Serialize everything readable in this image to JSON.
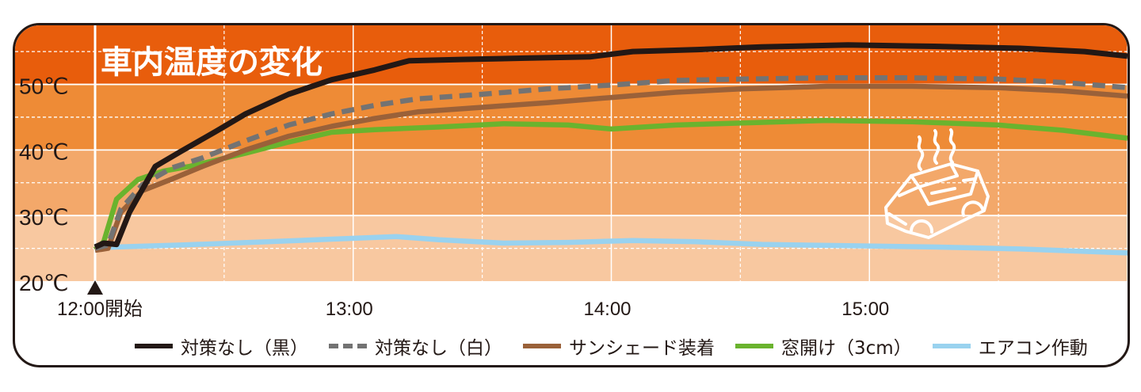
{
  "chart_data": {
    "type": "line",
    "title": "車内温度の変化",
    "xlabel": "",
    "ylabel": "",
    "x_ticks": [
      {
        "label": "12:00開始",
        "x": 0
      },
      {
        "label": "13:00",
        "x": 60
      },
      {
        "label": "14:00",
        "x": 120
      },
      {
        "label": "15:00",
        "x": 180
      }
    ],
    "y_ticks": [
      {
        "label": "20℃",
        "y": 20
      },
      {
        "label": "30℃",
        "y": 30
      },
      {
        "label": "40℃",
        "y": 40
      },
      {
        "label": "50℃",
        "y": 50
      }
    ],
    "xlim": [
      0,
      240
    ],
    "ylim": [
      20,
      59
    ],
    "grid": true,
    "legend_position": "bottom",
    "series": [
      {
        "name": "対策なし（黒）",
        "color": "#231815",
        "style": "solid",
        "points": [
          [
            0,
            25.2
          ],
          [
            2,
            25.8
          ],
          [
            5,
            25.6
          ],
          [
            8,
            30.5
          ],
          [
            14,
            37.5
          ],
          [
            20,
            39.8
          ],
          [
            28,
            42.8
          ],
          [
            35,
            45.5
          ],
          [
            45,
            48.5
          ],
          [
            55,
            50.7
          ],
          [
            65,
            52.2
          ],
          [
            73,
            53.6
          ],
          [
            85,
            53.8
          ],
          [
            100,
            54
          ],
          [
            115,
            54.2
          ],
          [
            125,
            55
          ],
          [
            140,
            55.3
          ],
          [
            155,
            55.7
          ],
          [
            175,
            56
          ],
          [
            195,
            55.8
          ],
          [
            215,
            55.5
          ],
          [
            230,
            55
          ],
          [
            240,
            54.3
          ]
        ]
      },
      {
        "name": "対策なし（白）",
        "color": "#737373",
        "style": "dashed",
        "points": [
          [
            0,
            25
          ],
          [
            3,
            25.5
          ],
          [
            6,
            31
          ],
          [
            11,
            34.7
          ],
          [
            18,
            37.3
          ],
          [
            25,
            38.8
          ],
          [
            35,
            41.4
          ],
          [
            45,
            43.8
          ],
          [
            55,
            45.5
          ],
          [
            65,
            46.8
          ],
          [
            75,
            47.8
          ],
          [
            90,
            48.5
          ],
          [
            105,
            49.3
          ],
          [
            120,
            49.9
          ],
          [
            135,
            50.6
          ],
          [
            150,
            50.8
          ],
          [
            170,
            51
          ],
          [
            190,
            51
          ],
          [
            210,
            50.8
          ],
          [
            225,
            50.3
          ],
          [
            240,
            49.5
          ]
        ]
      },
      {
        "name": "サンシェード装着",
        "color": "#9a6139",
        "style": "solid",
        "points": [
          [
            0,
            24.7
          ],
          [
            3,
            25
          ],
          [
            6,
            30.5
          ],
          [
            11,
            33.8
          ],
          [
            18,
            35.6
          ],
          [
            25,
            37.5
          ],
          [
            35,
            40
          ],
          [
            45,
            42.1
          ],
          [
            55,
            43.6
          ],
          [
            65,
            44.8
          ],
          [
            75,
            45.8
          ],
          [
            90,
            46.5
          ],
          [
            105,
            47.2
          ],
          [
            120,
            48
          ],
          [
            135,
            48.8
          ],
          [
            150,
            49.3
          ],
          [
            170,
            49.7
          ],
          [
            190,
            49.7
          ],
          [
            210,
            49.5
          ],
          [
            225,
            49
          ],
          [
            240,
            48.2
          ]
        ]
      },
      {
        "name": "窓開け（3cm）",
        "color": "#6ab32e",
        "style": "solid",
        "points": [
          [
            0,
            24.8
          ],
          [
            2,
            26
          ],
          [
            5,
            32.5
          ],
          [
            10,
            35.5
          ],
          [
            16,
            36.8
          ],
          [
            22,
            37.5
          ],
          [
            35,
            39.5
          ],
          [
            45,
            41.2
          ],
          [
            55,
            42.7
          ],
          [
            65,
            43.1
          ],
          [
            80,
            43.5
          ],
          [
            95,
            44
          ],
          [
            110,
            43.8
          ],
          [
            120,
            43.2
          ],
          [
            135,
            43.8
          ],
          [
            150,
            44.1
          ],
          [
            170,
            44.5
          ],
          [
            190,
            44.3
          ],
          [
            210,
            43.8
          ],
          [
            225,
            43
          ],
          [
            240,
            41.8
          ]
        ]
      },
      {
        "name": "エアコン作動",
        "color": "#99d2ef",
        "style": "solid",
        "points": [
          [
            0,
            25.1
          ],
          [
            5,
            25.2
          ],
          [
            20,
            25.5
          ],
          [
            40,
            26
          ],
          [
            55,
            26.4
          ],
          [
            70,
            26.8
          ],
          [
            80,
            26.3
          ],
          [
            95,
            25.8
          ],
          [
            110,
            25.9
          ],
          [
            125,
            26.2
          ],
          [
            140,
            26
          ],
          [
            155,
            25.6
          ],
          [
            175,
            25.4
          ],
          [
            195,
            25.2
          ],
          [
            215,
            24.9
          ],
          [
            240,
            24.3
          ]
        ]
      }
    ],
    "bands": [
      {
        "from": 20,
        "to": 30,
        "color": "#f8c8a0"
      },
      {
        "from": 30,
        "to": 40,
        "color": "#f3a86a"
      },
      {
        "from": 40,
        "to": 50,
        "color": "#ee8b36"
      },
      {
        "from": 50,
        "to": 59,
        "color": "#e85d0c"
      }
    ],
    "icons": [
      "hot-car-icon"
    ]
  }
}
